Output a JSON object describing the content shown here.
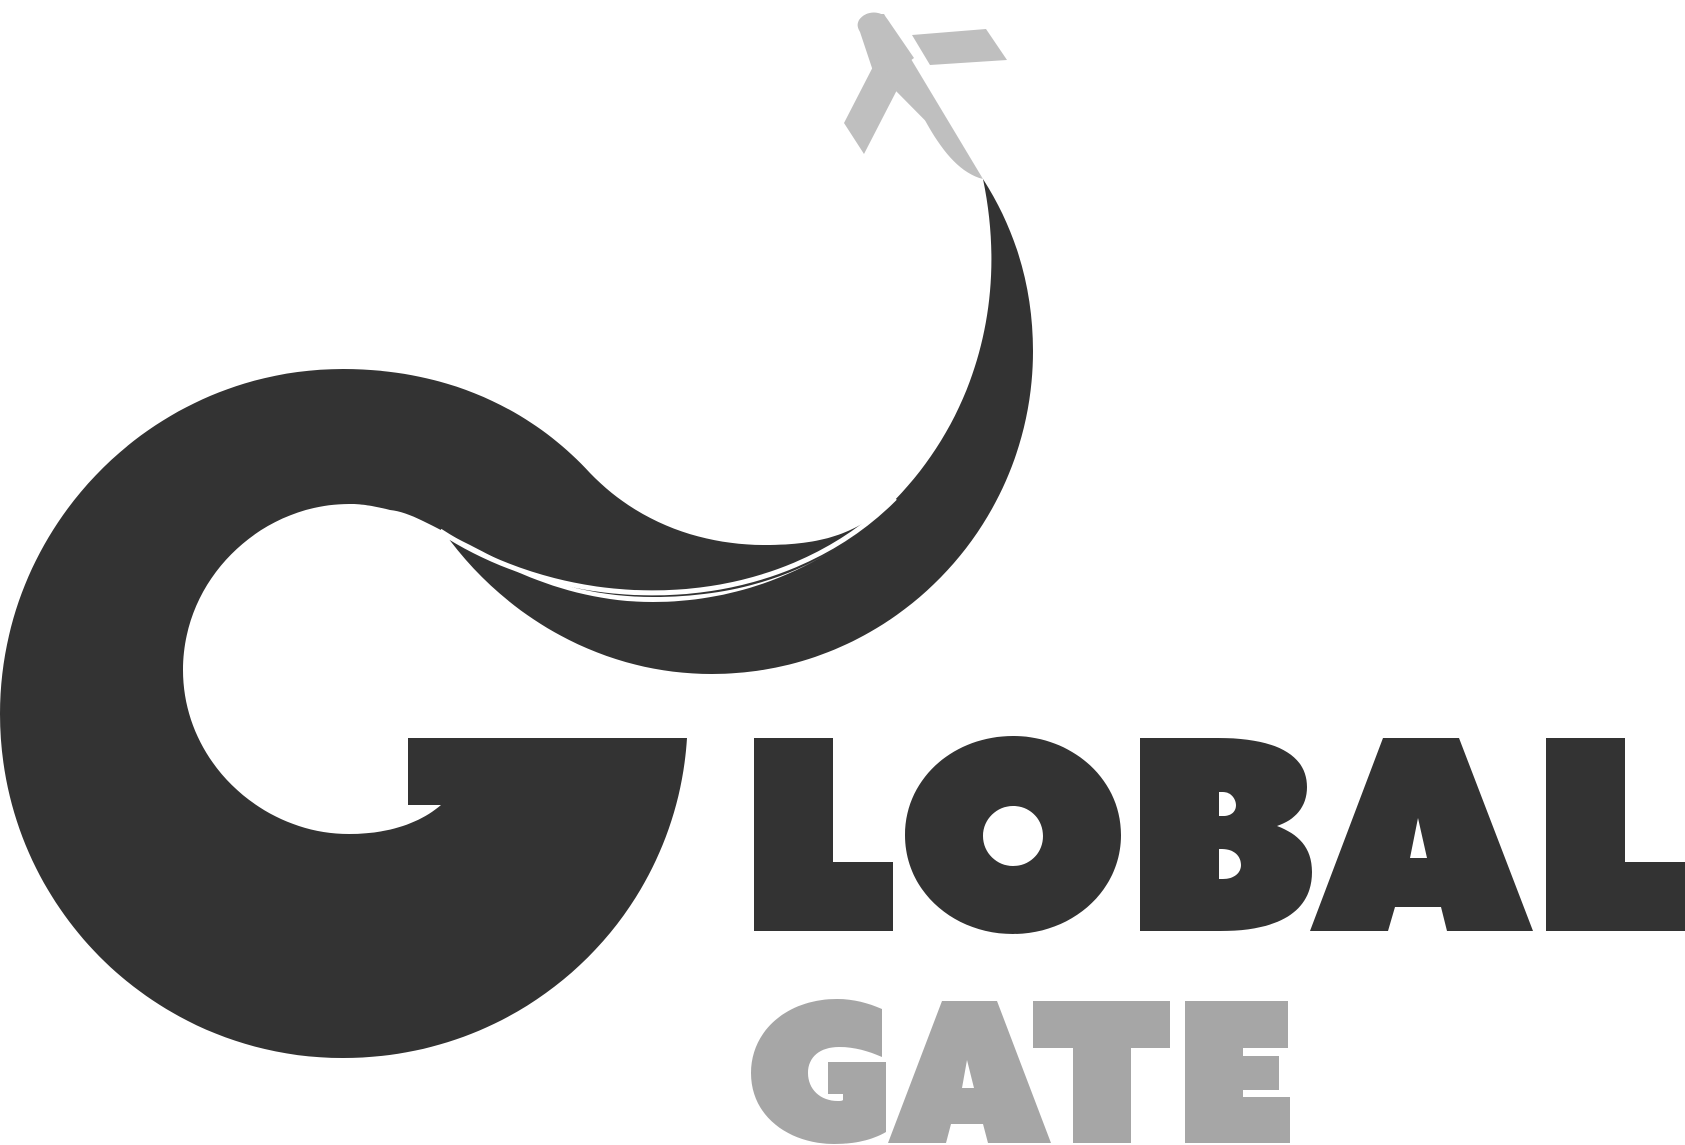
{
  "logo": {
    "brand_word_1": "GLOBAL",
    "brand_word_2": "GATE",
    "colors": {
      "primary": "#333333",
      "secondary": "#a6a6a6",
      "plane": "#bfbfbf",
      "background": "#ffffff"
    },
    "icons": {
      "plane": "airplane-icon",
      "swirl": "g-swirl-mark"
    }
  }
}
